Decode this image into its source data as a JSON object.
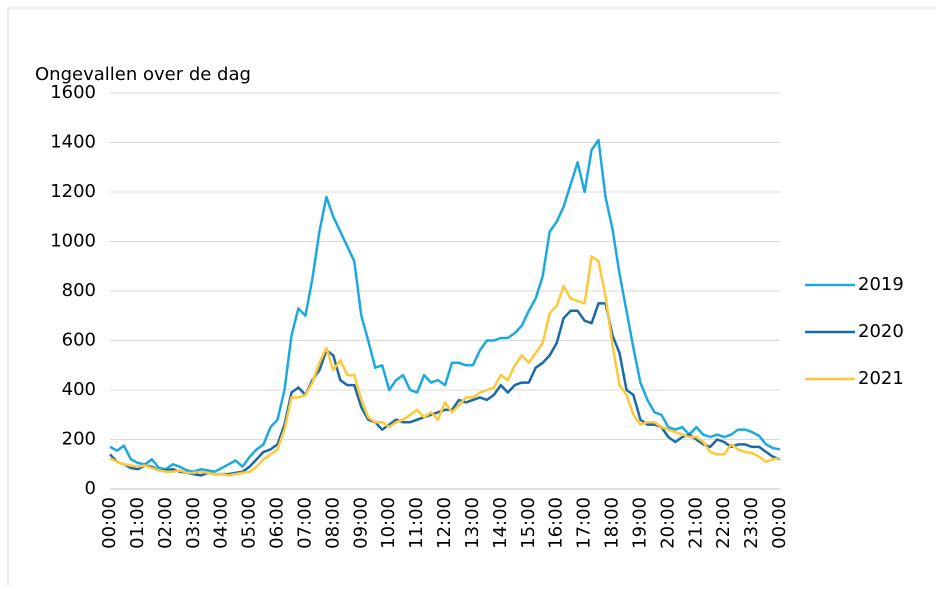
{
  "chart_data": {
    "type": "line",
    "title": "Ongevallen over de dag",
    "categories": [
      "00:00",
      null,
      null,
      null,
      "01:00",
      null,
      null,
      null,
      "02:00",
      null,
      null,
      null,
      "03:00",
      null,
      null,
      null,
      "04:00",
      null,
      null,
      null,
      "05:00",
      null,
      null,
      null,
      "06:00",
      null,
      null,
      null,
      "07:00",
      null,
      null,
      null,
      "08:00",
      null,
      null,
      null,
      "09:00",
      null,
      null,
      null,
      "10:00",
      null,
      null,
      null,
      "11:00",
      null,
      null,
      null,
      "12:00",
      null,
      null,
      null,
      "13:00",
      null,
      null,
      null,
      "14:00",
      null,
      null,
      null,
      "15:00",
      null,
      null,
      null,
      "16:00",
      null,
      null,
      null,
      "17:00",
      null,
      null,
      null,
      "18:00",
      null,
      null,
      null,
      "19:00",
      null,
      null,
      null,
      "20:00",
      null,
      null,
      null,
      "21:00",
      null,
      null,
      null,
      "22:00",
      null,
      null,
      null,
      "23:00",
      null,
      null,
      null,
      "00:00"
    ],
    "series": [
      {
        "name": "2019",
        "color": "#1ca8e0",
        "values": [
          170,
          155,
          175,
          120,
          105,
          100,
          120,
          85,
          80,
          100,
          90,
          75,
          70,
          80,
          75,
          70,
          85,
          100,
          115,
          90,
          130,
          160,
          180,
          250,
          280,
          400,
          620,
          730,
          700,
          850,
          1040,
          1180,
          1100,
          1040,
          980,
          920,
          700,
          600,
          490,
          500,
          400,
          440,
          460,
          400,
          390,
          460,
          430,
          440,
          420,
          510,
          510,
          500,
          500,
          560,
          600,
          600,
          610,
          610,
          630,
          660,
          720,
          770,
          860,
          1040,
          1080,
          1140,
          1230,
          1320,
          1200,
          1370,
          1410,
          1180,
          1050,
          870,
          720,
          570,
          430,
          360,
          310,
          300,
          250,
          240,
          250,
          220,
          250,
          220,
          210,
          220,
          210,
          220,
          240,
          240,
          230,
          215,
          180,
          165,
          160
        ]
      },
      {
        "name": "2020",
        "color": "#1a6aa8",
        "values": [
          140,
          110,
          100,
          85,
          80,
          95,
          90,
          75,
          75,
          80,
          70,
          65,
          60,
          55,
          65,
          60,
          60,
          60,
          65,
          70,
          90,
          120,
          150,
          160,
          180,
          260,
          390,
          410,
          380,
          440,
          480,
          560,
          540,
          440,
          420,
          420,
          330,
          280,
          270,
          240,
          260,
          280,
          270,
          270,
          280,
          290,
          300,
          310,
          320,
          320,
          360,
          350,
          360,
          370,
          360,
          380,
          420,
          390,
          420,
          430,
          430,
          490,
          510,
          540,
          590,
          690,
          720,
          720,
          680,
          670,
          750,
          750,
          620,
          550,
          400,
          380,
          280,
          260,
          260,
          250,
          210,
          190,
          210,
          220,
          200,
          180,
          170,
          200,
          190,
          170,
          180,
          180,
          170,
          170,
          150,
          130,
          120
        ]
      },
      {
        "name": "2021",
        "color": "#ffc838",
        "values": [
          125,
          110,
          100,
          95,
          90,
          95,
          85,
          75,
          70,
          70,
          75,
          65,
          65,
          70,
          65,
          60,
          60,
          55,
          60,
          65,
          70,
          90,
          120,
          140,
          160,
          240,
          370,
          370,
          380,
          430,
          510,
          570,
          480,
          520,
          460,
          460,
          360,
          290,
          270,
          270,
          250,
          270,
          280,
          300,
          320,
          290,
          310,
          280,
          350,
          310,
          340,
          370,
          370,
          390,
          400,
          410,
          460,
          440,
          500,
          540,
          510,
          550,
          590,
          710,
          740,
          820,
          770,
          760,
          750,
          940,
          920,
          780,
          580,
          420,
          380,
          300,
          260,
          270,
          270,
          250,
          240,
          230,
          220,
          210,
          210,
          190,
          150,
          140,
          140,
          180,
          160,
          150,
          145,
          130,
          110,
          120,
          125
        ]
      }
    ],
    "ylim": [
      0,
      1600
    ],
    "yticks": [
      0,
      200,
      400,
      600,
      800,
      1000,
      1200,
      1400,
      1600
    ],
    "grid": true,
    "legend": "right"
  }
}
